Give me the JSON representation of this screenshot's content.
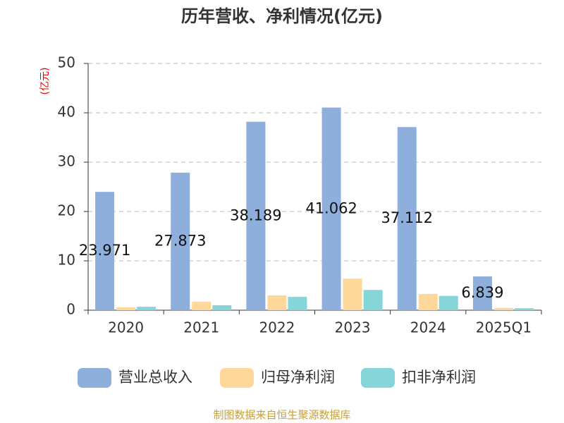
{
  "chart_data": {
    "type": "bar",
    "title": "历年营收、净利情况(亿元)",
    "y_label": "(亿元)",
    "source": "制图数据来自恒生聚源数据库",
    "categories": [
      "2020",
      "2021",
      "2022",
      "2023",
      "2024",
      "2025Q1"
    ],
    "series": [
      {
        "name": "营业总收入",
        "color": "#8eaedb",
        "values": [
          23.971,
          27.873,
          38.189,
          41.062,
          37.112,
          6.839
        ],
        "show_labels": true
      },
      {
        "name": "归母净利润",
        "color": "#fdd89a",
        "values": [
          0.6,
          1.7,
          3.0,
          6.4,
          3.3,
          0.45
        ]
      },
      {
        "name": "扣非净利润",
        "color": "#86d6d9",
        "values": [
          0.7,
          1.0,
          2.7,
          4.1,
          2.9,
          0.4
        ]
      }
    ],
    "ylim": [
      0,
      50
    ],
    "yticks": [
      0,
      10,
      20,
      30,
      40,
      50
    ],
    "grid": true,
    "legend": "bottom"
  }
}
